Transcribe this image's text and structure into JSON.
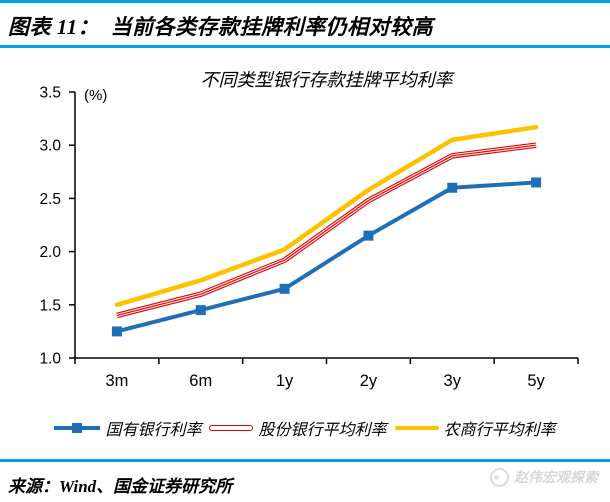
{
  "header": {
    "title": "图表 11：  当前各类存款挂牌利率仍相对较高"
  },
  "chart_data": {
    "type": "line",
    "title": "不同类型银行存款挂牌平均利率",
    "unit_label": "(%)",
    "categories": [
      "3m",
      "6m",
      "1y",
      "2y",
      "3y",
      "5y"
    ],
    "series": [
      {
        "name": "国有银行利率",
        "color": "#1E6FB8",
        "line_style": "solid-with-square-markers",
        "values": [
          1.25,
          1.45,
          1.65,
          2.15,
          2.6,
          2.65
        ]
      },
      {
        "name": "股份银行平均利率",
        "color": "#E60000",
        "line_style": "compound-double-line",
        "values": [
          1.4,
          1.6,
          1.92,
          2.48,
          2.9,
          3.0
        ]
      },
      {
        "name": "农商行平均利率",
        "color": "#FFC000",
        "line_style": "solid-thick",
        "values": [
          1.5,
          1.73,
          2.02,
          2.58,
          3.05,
          3.17
        ]
      }
    ],
    "ylim": [
      1.0,
      3.5
    ],
    "yticks": [
      1.0,
      1.5,
      2.0,
      2.5,
      3.0,
      3.5
    ],
    "grid": false,
    "legend_position": "bottom"
  },
  "footer": {
    "source": "来源：Wind、国金证券研究所",
    "watermark": "赵伟宏观探索"
  },
  "colors": {
    "accent": "#00A0E6",
    "axis": "#000000"
  }
}
